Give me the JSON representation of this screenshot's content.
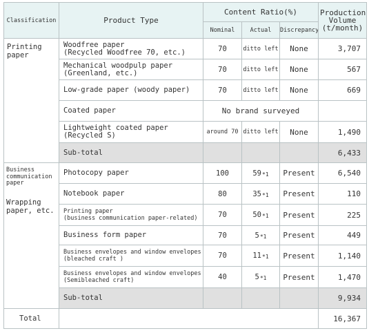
{
  "headers": {
    "classification": "Classification",
    "product_type": "Product Type",
    "content_ratio": "Content Ratio(%)",
    "nominal": "Nominal",
    "actual": "Actual",
    "discrepancy": "Discrepancy",
    "production_volume": "Production Volume (t/month)"
  },
  "groups": {
    "printing": "Printing paper",
    "business": "Business communication paper",
    "wrapping": "Wrapping paper, etc."
  },
  "rows": [
    {
      "type1": "Woodfree paper",
      "type2": "(Recycled Woodfree 70, etc.)",
      "nominal": "70",
      "actual": "ditto left",
      "star": "",
      "disc": "None",
      "vol": "3,707"
    },
    {
      "type1": "Mechanical woodpulp paper",
      "type2": "(Greenland, etc.)",
      "nominal": "70",
      "actual": "ditto left",
      "star": "",
      "disc": "None",
      "vol": "567"
    },
    {
      "type1": "Low-grade paper (woody paper)",
      "type2": "",
      "nominal": "70",
      "actual": "ditto left",
      "star": "",
      "disc": "None",
      "vol": "669"
    },
    {
      "type1": "Coated paper",
      "type2": "",
      "note": "No brand surveyed",
      "vol": ""
    },
    {
      "type1": "Lightweight coated paper",
      "type2": "(Recycled S)",
      "nominal": "around 70",
      "actual": "ditto left",
      "star": "",
      "disc": "None",
      "vol": "1,490"
    },
    {
      "type1": "Sub-total",
      "vol": "6,433"
    },
    {
      "type1": "Photocopy paper",
      "type2": "",
      "nominal": "100",
      "actual": "59",
      "star": "*1",
      "disc": "Present",
      "vol": "6,540"
    },
    {
      "type1": "Notebook paper",
      "type2": "",
      "nominal": "80",
      "actual": "35",
      "star": "*1",
      "disc": "Present",
      "vol": "110"
    },
    {
      "type1": "Printing paper",
      "type2": "(business communication paper-related)",
      "nominal": "70",
      "actual": "50",
      "star": "*1",
      "disc": "Present",
      "vol": "225"
    },
    {
      "type1": "Business form paper",
      "type2": "",
      "nominal": "70",
      "actual": "5",
      "star": "*1",
      "disc": "Present",
      "vol": "449"
    },
    {
      "type1": "Business envelopes and window envelopes",
      "type2": "(bleached craft )",
      "nominal": "70",
      "actual": "11",
      "star": "*1",
      "disc": "Present",
      "vol": "1,140"
    },
    {
      "type1": "Business envelopes and window envelopes",
      "type2": "(Semibleached craft)",
      "nominal": "40",
      "actual": "5",
      "star": "*1",
      "disc": "Present",
      "vol": "1,470"
    },
    {
      "type1": "Sub-total",
      "vol": "9,934"
    }
  ],
  "total": {
    "label": "Total",
    "vol": "16,367"
  }
}
